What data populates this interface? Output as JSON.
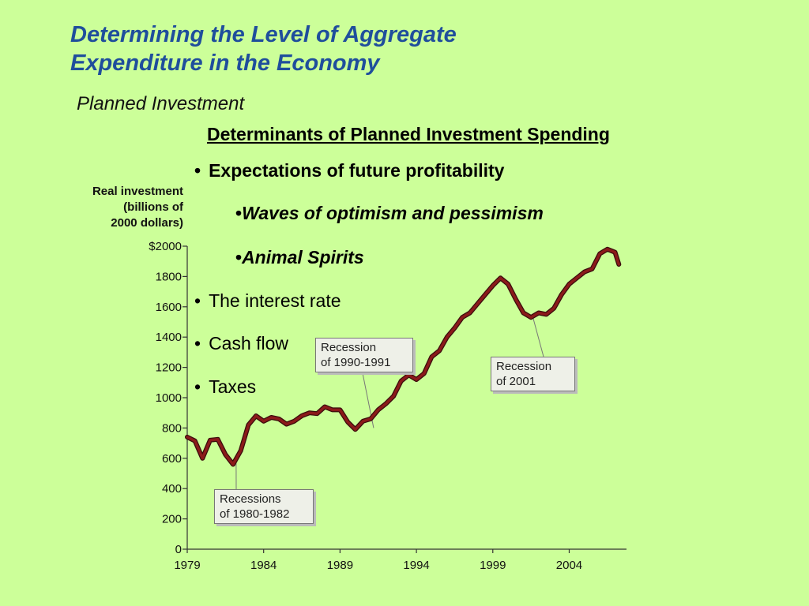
{
  "slide": {
    "title_line1": "Determining the Level of Aggregate",
    "title_line2": "Expenditure in the Economy",
    "subtitle": "Planned Investment",
    "heading": "Determinants of Planned Investment Spending",
    "bullets": [
      "Expectations of future profitability",
      "Waves of optimism and pessimism",
      "Animal Spirits",
      "The interest rate",
      "Cash flow",
      "Taxes"
    ],
    "bullet_char": "•"
  },
  "chart_data": {
    "type": "line",
    "ylabel_lines": [
      "Real investment",
      "(billions of",
      "2000 dollars)"
    ],
    "ylim": [
      0,
      2000
    ],
    "xlim": [
      1979,
      2007.75
    ],
    "yticks": [
      0,
      200,
      400,
      600,
      800,
      1000,
      1200,
      1400,
      1600,
      1800,
      2000
    ],
    "ytick_labels": [
      "0",
      "200",
      "400",
      "600",
      "800",
      "1000",
      "1200",
      "1400",
      "1600",
      "1800",
      "$2000"
    ],
    "xticks": [
      1979,
      1984,
      1989,
      1994,
      1999,
      2004
    ],
    "xtick_labels": [
      "1979",
      "1984",
      "1989",
      "1994",
      "1999",
      "2004"
    ],
    "series": [
      {
        "color": "#8b1a1a",
        "x": [
          1979,
          1979.5,
          1980,
          1980.5,
          1981,
          1981.5,
          1982,
          1982.5,
          1983,
          1983.5,
          1984,
          1984.5,
          1985,
          1985.5,
          1986,
          1986.5,
          1987,
          1987.5,
          1988,
          1988.5,
          1989,
          1989.5,
          1990,
          1990.5,
          1991,
          1991.5,
          1992,
          1992.5,
          1993,
          1993.5,
          1994,
          1994.5,
          1995,
          1995.5,
          1996,
          1996.5,
          1997,
          1997.5,
          1998,
          1998.5,
          1999,
          1999.5,
          2000,
          2000.5,
          2001,
          2001.5,
          2002,
          2002.5,
          2003,
          2003.5,
          2004,
          2004.5,
          2005,
          2005.5,
          2006,
          2006.5,
          2007,
          2007.25
        ],
        "values": [
          740,
          715,
          600,
          720,
          725,
          625,
          560,
          650,
          820,
          880,
          845,
          870,
          860,
          825,
          845,
          880,
          900,
          895,
          940,
          920,
          920,
          840,
          790,
          845,
          860,
          920,
          960,
          1010,
          1110,
          1150,
          1120,
          1160,
          1270,
          1310,
          1400,
          1460,
          1530,
          1560,
          1620,
          1680,
          1740,
          1790,
          1750,
          1650,
          1560,
          1530,
          1560,
          1550,
          1590,
          1680,
          1750,
          1790,
          1830,
          1850,
          1950,
          1980,
          1960,
          1880
        ]
      }
    ],
    "annotations": [
      {
        "line1": "Recessions",
        "line2": "of 1980-1982",
        "x": 1982.2,
        "y": 580
      },
      {
        "line1": "Recession",
        "line2": "of 1990-1991",
        "x": 1991.2,
        "y": 800
      },
      {
        "line1": "Recession",
        "line2": "of 2001",
        "x": 2001.6,
        "y": 1540
      }
    ]
  }
}
